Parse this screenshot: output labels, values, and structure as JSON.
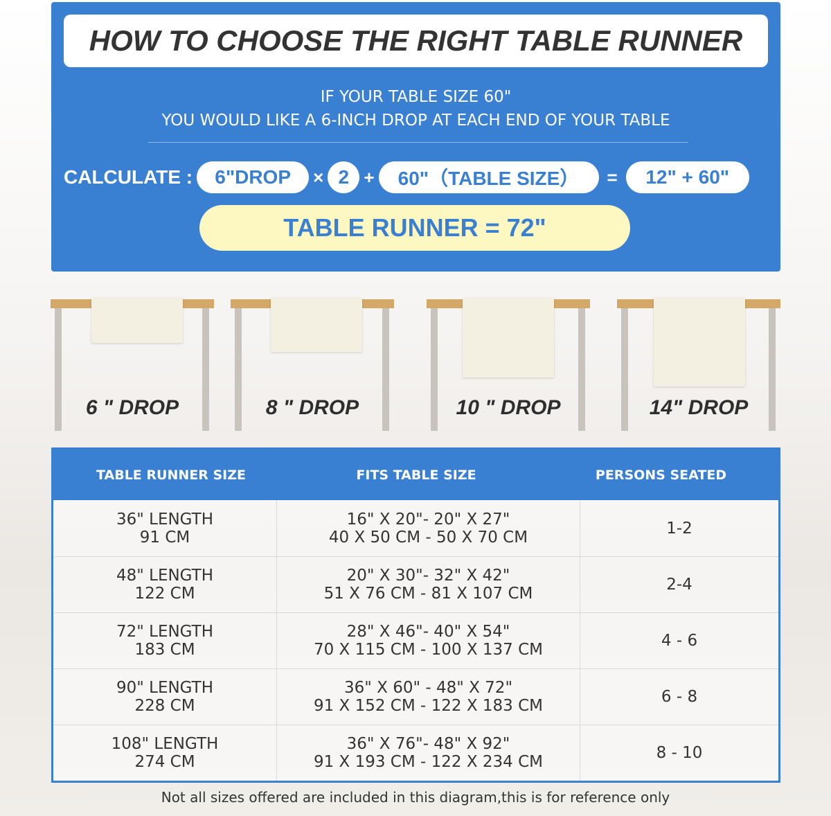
{
  "title": "HOW TO CHOOSE THE RIGHT TABLE RUNNER",
  "intro": [
    "IF YOUR TABLE SIZE 60\"",
    "YOU WOULD LIKE A 6-INCH DROP AT EACH END OF YOUR TABLE"
  ],
  "calc": {
    "label": "CALCULATE :",
    "drop": "6\"DROP",
    "times": "×",
    "multiplier": "2",
    "plus": "+",
    "table": "60\"（TABLE SIZE）",
    "equals": "=",
    "sum": "12\" + 60\"",
    "result": "TABLE RUNNER = 72\""
  },
  "drops": [
    "6 \" DROP",
    "8 \" DROP",
    "10 \" DROP",
    "14\" DROP"
  ],
  "table": {
    "headers": [
      "TABLE RUNNER SIZE",
      "FITS TABLE SIZE",
      "PERSONS SEATED"
    ],
    "rows": [
      {
        "size": [
          "36\" LENGTH",
          "91 CM"
        ],
        "fits": [
          "16\" X 20\"- 20\" X 27\"",
          "40 X 50 CM - 50 X 70 CM"
        ],
        "persons": "1-2"
      },
      {
        "size": [
          "48\" LENGTH",
          "122 CM"
        ],
        "fits": [
          "20\" X 30\"- 32\" X 42\"",
          "51 X 76 CM - 81 X 107 CM"
        ],
        "persons": "2-4"
      },
      {
        "size": [
          "72\" LENGTH",
          "183 CM"
        ],
        "fits": [
          "28\" X 46\"- 40\" X 54\"",
          "70 X 115 CM - 100 X 137 CM"
        ],
        "persons": "4 - 6"
      },
      {
        "size": [
          "90\" LENGTH",
          "228 CM"
        ],
        "fits": [
          "36\" X 60\" - 48\" X 72\"",
          "91 X 152 CM - 122 X 183 CM"
        ],
        "persons": "6 - 8"
      },
      {
        "size": [
          "108\" LENGTH",
          "274 CM"
        ],
        "fits": [
          "36\" X 76\"- 48\" X 92\"",
          "91 X 193 CM - 122 X 234 CM"
        ],
        "persons": "8 - 10"
      }
    ]
  },
  "footnote": "Not all sizes offered are included in this diagram,this is for reference only",
  "colors": {
    "accent": "#3a80d2",
    "highlight": "#fdf8c2",
    "tabletop": "#d4a866"
  }
}
